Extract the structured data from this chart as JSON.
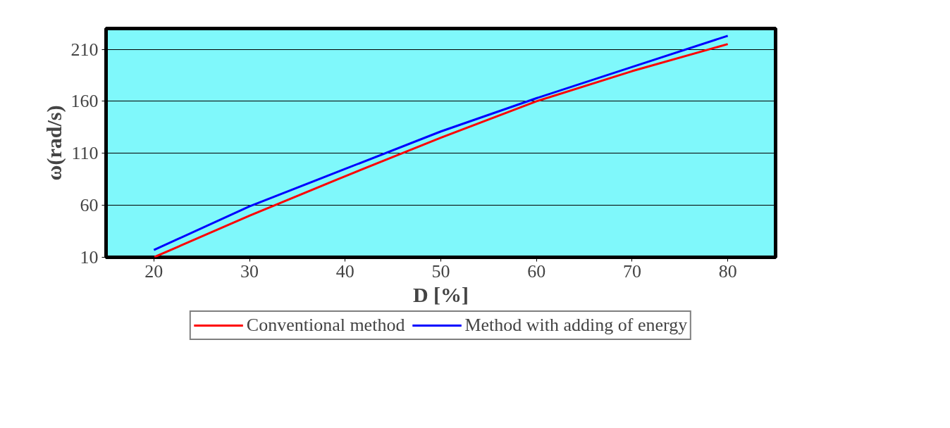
{
  "chart_data": {
    "type": "line",
    "xlabel": "D [%]",
    "ylabel": "ω(rad/s)",
    "x": [
      20,
      30,
      40,
      50,
      60,
      70,
      80
    ],
    "xlim": [
      15,
      85
    ],
    "xticks": [
      20,
      30,
      40,
      50,
      60,
      70,
      80
    ],
    "ylim": [
      10,
      230
    ],
    "yticks": [
      10,
      60,
      110,
      160,
      210
    ],
    "grid": "y",
    "legend": "bottom",
    "marker": "none",
    "line_style": "solid",
    "series": [
      {
        "name": "Conventional method",
        "color": "#ff0000",
        "values": [
          10,
          50,
          88,
          125,
          160,
          189,
          215
        ]
      },
      {
        "name": "Method with adding of energy",
        "color": "#0000ff",
        "values": [
          17,
          59,
          95,
          131,
          163,
          193,
          223
        ]
      }
    ]
  }
}
